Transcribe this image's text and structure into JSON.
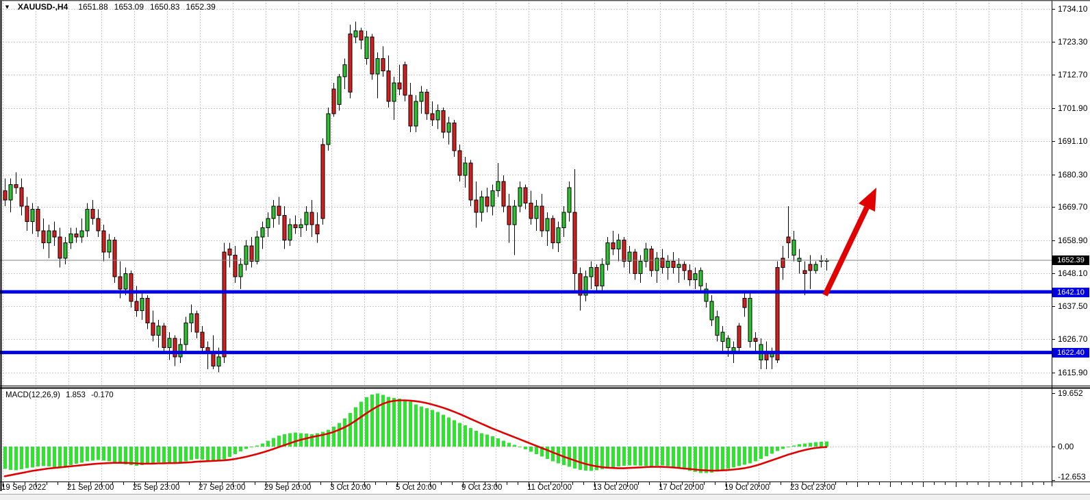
{
  "header": {
    "dropdown_icon": "▼",
    "symbol": "XAUUSD-,H4",
    "open": "1651.88",
    "high": "1653.09",
    "low": "1650.83",
    "close": "1652.39"
  },
  "price_axis": {
    "current_price_badge": "1652.39",
    "support_badge_1": "1642.10",
    "support_badge_2": "1622.40"
  },
  "indicator": {
    "label": "MACD(12,26,9)",
    "macd_value": "1.853",
    "signal_value": "-0.170"
  },
  "colors": {
    "bull": "#2EC12E",
    "bear": "#D51F1F",
    "histogram": "#2FE42F",
    "signal_line": "#E00000",
    "support_line": "#0000E1",
    "arrow": "#E00000",
    "current_price_line": "#808080",
    "grid": "#c9c9c9",
    "badge_current_bg": "#000000",
    "badge_level_bg": "#0000E1"
  },
  "chart_data": {
    "type": "candlestick",
    "title": "XAUUSD-,H4",
    "symbol": "XAUUSD",
    "timeframe": "H4",
    "ohlc_current": {
      "open": 1651.88,
      "high": 1653.09,
      "low": 1650.83,
      "close": 1652.39
    },
    "current_price": 1652.39,
    "horizontal_lines": [
      1642.1,
      1622.4
    ],
    "arrow_annotation": {
      "direction": "up",
      "from_price": 1642.0,
      "to_price": 1676.0
    },
    "ylim": {
      "top": 1734.1,
      "bottom": 1615.9
    },
    "price_tick_labels": [
      "1734.10",
      "1723.30",
      "1712.70",
      "1701.90",
      "1691.10",
      "1680.30",
      "1669.70",
      "1658.90",
      "1648.10",
      "1637.50",
      "1626.70",
      "1615.90"
    ],
    "macd_tick_labels": [
      "19.652",
      "0.00",
      "-12.653"
    ],
    "x_tick_labels": [
      "19 Sep 2022",
      "21 Sep 20:00",
      "25 Sep 23:00",
      "27 Sep 20:00",
      "29 Sep 20:00",
      "3 Oct 20:00",
      "5 Oct 20:00",
      "9 Oct 23:00",
      "11 Oct 20:00",
      "13 Oct 20:00",
      "17 Oct 20:00",
      "19 Oct 20:00",
      "23 Oct 23:00"
    ],
    "candles": [
      [
        1675,
        1679,
        1670,
        1672
      ],
      [
        1672,
        1679,
        1668,
        1677
      ],
      [
        1677,
        1681,
        1674,
        1676
      ],
      [
        1676,
        1679,
        1667,
        1670
      ],
      [
        1670,
        1673,
        1662,
        1665
      ],
      [
        1665,
        1671,
        1661,
        1669
      ],
      [
        1669,
        1670,
        1660,
        1662
      ],
      [
        1662,
        1666,
        1656,
        1658
      ],
      [
        1658,
        1664,
        1653,
        1662
      ],
      [
        1662,
        1665,
        1657,
        1660
      ],
      [
        1660,
        1663,
        1650,
        1653
      ],
      [
        1653,
        1660,
        1651,
        1658
      ],
      [
        1658,
        1663,
        1656,
        1661
      ],
      [
        1661,
        1663,
        1658,
        1660
      ],
      [
        1660,
        1666,
        1658,
        1662
      ],
      [
        1662,
        1671,
        1660,
        1669
      ],
      [
        1669,
        1672,
        1664,
        1666
      ],
      [
        1666,
        1669,
        1660,
        1662
      ],
      [
        1662,
        1664,
        1652,
        1655
      ],
      [
        1655,
        1661,
        1653,
        1659
      ],
      [
        1659,
        1660,
        1645,
        1647
      ],
      [
        1647,
        1652,
        1640,
        1643
      ],
      [
        1643,
        1650,
        1641,
        1648
      ],
      [
        1648,
        1649,
        1637,
        1639
      ],
      [
        1639,
        1644,
        1634,
        1636
      ],
      [
        1636,
        1642,
        1633,
        1640
      ],
      [
        1640,
        1641,
        1630,
        1632
      ],
      [
        1632,
        1636,
        1626,
        1628
      ],
      [
        1628,
        1633,
        1624,
        1631
      ],
      [
        1631,
        1632,
        1622,
        1624
      ],
      [
        1624,
        1629,
        1620,
        1627
      ],
      [
        1627,
        1628,
        1618,
        1621
      ],
      [
        1621,
        1627,
        1619,
        1625
      ],
      [
        1625,
        1634,
        1623,
        1632
      ],
      [
        1632,
        1638,
        1629,
        1635
      ],
      [
        1635,
        1636,
        1627,
        1629
      ],
      [
        1629,
        1631,
        1622,
        1624
      ],
      [
        1624,
        1626,
        1617,
        1622
      ],
      [
        1622,
        1628,
        1617,
        1618
      ],
      [
        1618,
        1624,
        1616,
        1621
      ],
      [
        1655,
        1658,
        1619,
        1621
      ],
      [
        1656,
        1658,
        1650,
        1654
      ],
      [
        1654,
        1657,
        1645,
        1647
      ],
      [
        1647,
        1653,
        1643,
        1651
      ],
      [
        1651,
        1659,
        1649,
        1657
      ],
      [
        1657,
        1660,
        1650,
        1652
      ],
      [
        1652,
        1662,
        1651,
        1660
      ],
      [
        1660,
        1665,
        1656,
        1663
      ],
      [
        1663,
        1668,
        1660,
        1666
      ],
      [
        1666,
        1672,
        1663,
        1670
      ],
      [
        1670,
        1673,
        1664,
        1667
      ],
      [
        1667,
        1670,
        1656,
        1659
      ],
      [
        1659,
        1666,
        1657,
        1664
      ],
      [
        1664,
        1667,
        1661,
        1663
      ],
      [
        1663,
        1666,
        1660,
        1664
      ],
      [
        1664,
        1670,
        1662,
        1668
      ],
      [
        1668,
        1672,
        1660,
        1664
      ],
      [
        1664,
        1668,
        1658,
        1661
      ],
      [
        1690,
        1692,
        1664,
        1666
      ],
      [
        1690,
        1702,
        1688,
        1700
      ],
      [
        1708,
        1710,
        1699,
        1700
      ],
      [
        1703,
        1713,
        1701,
        1712
      ],
      [
        1712,
        1718,
        1708,
        1716
      ],
      [
        1726,
        1729,
        1705,
        1707
      ],
      [
        1725,
        1730,
        1723,
        1727
      ],
      [
        1727,
        1728,
        1721,
        1724
      ],
      [
        1718,
        1727,
        1716,
        1725
      ],
      [
        1725,
        1726,
        1711,
        1713
      ],
      [
        1713,
        1720,
        1705,
        1718
      ],
      [
        1718,
        1722,
        1712,
        1714
      ],
      [
        1714,
        1719,
        1702,
        1704
      ],
      [
        1704,
        1712,
        1698,
        1710
      ],
      [
        1710,
        1716,
        1706,
        1708
      ],
      [
        1716,
        1717,
        1704,
        1706
      ],
      [
        1706,
        1710,
        1694,
        1696
      ],
      [
        1696,
        1706,
        1694,
        1704
      ],
      [
        1704,
        1709,
        1700,
        1707
      ],
      [
        1707,
        1708,
        1698,
        1700
      ],
      [
        1700,
        1704,
        1696,
        1698
      ],
      [
        1698,
        1703,
        1695,
        1701
      ],
      [
        1701,
        1702,
        1692,
        1694
      ],
      [
        1694,
        1699,
        1690,
        1697
      ],
      [
        1697,
        1698,
        1686,
        1688
      ],
      [
        1688,
        1690,
        1678,
        1680
      ],
      [
        1680,
        1686,
        1676,
        1684
      ],
      [
        1684,
        1685,
        1670,
        1672
      ],
      [
        1672,
        1678,
        1663,
        1668
      ],
      [
        1668,
        1675,
        1665,
        1673
      ],
      [
        1673,
        1676,
        1668,
        1670
      ],
      [
        1670,
        1677,
        1667,
        1675
      ],
      [
        1675,
        1684,
        1673,
        1678
      ],
      [
        1678,
        1680,
        1668,
        1670
      ],
      [
        1670,
        1674,
        1658,
        1664
      ],
      [
        1664,
        1672,
        1654,
        1670
      ],
      [
        1670,
        1678,
        1668,
        1676
      ],
      [
        1676,
        1677,
        1669,
        1671
      ],
      [
        1671,
        1675,
        1664,
        1666
      ],
      [
        1666,
        1672,
        1662,
        1670
      ],
      [
        1670,
        1674,
        1660,
        1662
      ],
      [
        1662,
        1668,
        1657,
        1666
      ],
      [
        1666,
        1667,
        1656,
        1658
      ],
      [
        1658,
        1665,
        1655,
        1663
      ],
      [
        1663,
        1670,
        1660,
        1668
      ],
      [
        1668,
        1678,
        1665,
        1676
      ],
      [
        1668,
        1682,
        1642,
        1648
      ],
      [
        1648,
        1650,
        1636,
        1641
      ],
      [
        1641,
        1649,
        1639,
        1647
      ],
      [
        1647,
        1652,
        1643,
        1650
      ],
      [
        1650,
        1651,
        1642,
        1644
      ],
      [
        1644,
        1653,
        1642,
        1651
      ],
      [
        1651,
        1660,
        1649,
        1658
      ],
      [
        1658,
        1662,
        1654,
        1656
      ],
      [
        1656,
        1661,
        1652,
        1659
      ],
      [
        1659,
        1660,
        1650,
        1652
      ],
      [
        1652,
        1657,
        1648,
        1655
      ],
      [
        1655,
        1656,
        1646,
        1648
      ],
      [
        1648,
        1654,
        1645,
        1652
      ],
      [
        1652,
        1658,
        1650,
        1656
      ],
      [
        1656,
        1657,
        1647,
        1649
      ],
      [
        1649,
        1655,
        1645,
        1653
      ],
      [
        1653,
        1656,
        1648,
        1650
      ],
      [
        1650,
        1654,
        1646,
        1652
      ],
      [
        1652,
        1655,
        1648,
        1650
      ],
      [
        1650,
        1653,
        1645,
        1651
      ],
      [
        1651,
        1652,
        1646,
        1649
      ],
      [
        1649,
        1651,
        1644,
        1646
      ],
      [
        1646,
        1650,
        1643,
        1648
      ],
      [
        1644,
        1650,
        1642,
        1649
      ],
      [
        1639,
        1645,
        1637,
        1643
      ],
      [
        1633,
        1641,
        1631,
        1639
      ],
      [
        1628,
        1636,
        1626,
        1634
      ],
      [
        1626,
        1631,
        1623,
        1629
      ],
      [
        1624,
        1628,
        1621,
        1627
      ],
      [
        1622,
        1626,
        1619,
        1624
      ],
      [
        1631,
        1632,
        1622,
        1624
      ],
      [
        1640,
        1642,
        1634,
        1637
      ],
      [
        1626,
        1642,
        1624,
        1640
      ],
      [
        1627,
        1629,
        1622,
        1626
      ],
      [
        1620,
        1627,
        1617,
        1625
      ],
      [
        1622,
        1626,
        1617,
        1620
      ],
      [
        1621,
        1624,
        1617,
        1622
      ],
      [
        1650,
        1652,
        1619,
        1620
      ],
      [
        1653,
        1657,
        1646,
        1650
      ],
      [
        1660,
        1670,
        1653,
        1658
      ],
      [
        1654,
        1662,
        1652,
        1659
      ],
      [
        1652,
        1656,
        1648,
        1653
      ],
      [
        1649,
        1652,
        1641,
        1648
      ],
      [
        1651,
        1654,
        1643,
        1649
      ],
      [
        1649,
        1652,
        1648,
        1651
      ],
      [
        1652,
        1654,
        1650,
        1652.4
      ],
      [
        1652,
        1653,
        1649,
        1652.4
      ]
    ],
    "macd": {
      "params": "12,26,9",
      "current": {
        "macd": 1.853,
        "signal": -0.17
      },
      "range": {
        "max": 19.652,
        "min": -12.653
      },
      "histogram": [
        -8.3,
        -8.6,
        -8.8,
        -8.4,
        -8.0,
        -7.7,
        -7.4,
        -7.2,
        -7.4,
        -7.6,
        -7.8,
        -7.4,
        -6.9,
        -6.4,
        -5.9,
        -5.5,
        -5.2,
        -5.0,
        -5.2,
        -5.5,
        -5.9,
        -6.3,
        -6.6,
        -6.9,
        -7.1,
        -6.9,
        -6.6,
        -6.2,
        -5.8,
        -6.0,
        -6.2,
        -6.4,
        -6.0,
        -5.5,
        -5.0,
        -4.6,
        -4.8,
        -5.1,
        -5.4,
        -5.1,
        -4.7,
        -3.8,
        -2.8,
        -1.8,
        -0.9,
        -0.3,
        0.4,
        1.2,
        2.2,
        3.2,
        4.0,
        4.6,
        5.0,
        5.2,
        5.0,
        4.8,
        4.6,
        4.9,
        5.4,
        6.2,
        7.4,
        8.8,
        10.4,
        12.4,
        14.6,
        16.6,
        18.2,
        19.3,
        19.65,
        19.2,
        18.4,
        18.0,
        17.8,
        17.4,
        16.6,
        15.6,
        14.8,
        14.2,
        13.6,
        12.8,
        11.8,
        10.8,
        9.8,
        8.8,
        7.8,
        6.8,
        5.8,
        5.0,
        4.4,
        3.8,
        3.0,
        2.2,
        1.4,
        0.6,
        -0.2,
        -1.0,
        -1.9,
        -2.8,
        -3.7,
        -4.6,
        -5.4,
        -6.2,
        -6.9,
        -7.5,
        -8.1,
        -8.6,
        -8.9,
        -9.0,
        -8.8,
        -8.4,
        -8.0,
        -7.6,
        -7.3,
        -7.1,
        -7.0,
        -7.0,
        -7.1,
        -7.2,
        -7.2,
        -7.1,
        -7.0,
        -7.2,
        -7.6,
        -8.0,
        -8.5,
        -9.0,
        -9.4,
        -9.7,
        -9.8,
        -9.6,
        -9.2,
        -8.7,
        -8.2,
        -7.7,
        -7.2,
        -6.7,
        -6.2,
        -5.5,
        -4.6,
        -3.6,
        -2.6,
        -1.7,
        -0.9,
        -0.2,
        0.4,
        0.9,
        1.2,
        1.45,
        1.6,
        1.75,
        1.853
      ],
      "signal": [
        -11.0,
        -10.6,
        -10.2,
        -9.8,
        -9.4,
        -9.0,
        -8.7,
        -8.4,
        -8.1,
        -7.9,
        -7.7,
        -7.5,
        -7.3,
        -7.1,
        -6.9,
        -6.7,
        -6.5,
        -6.3,
        -6.2,
        -6.1,
        -6.0,
        -6.0,
        -6.0,
        -6.1,
        -6.2,
        -6.3,
        -6.3,
        -6.3,
        -6.2,
        -6.2,
        -6.1,
        -6.1,
        -6.0,
        -5.9,
        -5.8,
        -5.6,
        -5.5,
        -5.4,
        -5.3,
        -5.2,
        -5.1,
        -4.9,
        -4.6,
        -4.2,
        -3.8,
        -3.3,
        -2.8,
        -2.2,
        -1.6,
        -0.9,
        -0.2,
        0.5,
        1.2,
        1.9,
        2.5,
        3.0,
        3.5,
        3.9,
        4.3,
        4.8,
        5.4,
        6.2,
        7.1,
        8.2,
        9.5,
        10.9,
        12.3,
        13.6,
        14.8,
        15.8,
        16.5,
        16.9,
        17.1,
        17.1,
        17.0,
        16.8,
        16.5,
        16.1,
        15.6,
        15.0,
        14.4,
        13.7,
        12.9,
        12.1,
        11.2,
        10.3,
        9.4,
        8.5,
        7.6,
        6.7,
        5.9,
        5.1,
        4.3,
        3.5,
        2.7,
        1.9,
        1.1,
        0.3,
        -0.5,
        -1.3,
        -2.1,
        -2.9,
        -3.7,
        -4.4,
        -5.1,
        -5.8,
        -6.4,
        -6.9,
        -7.3,
        -7.6,
        -7.8,
        -7.9,
        -8.0,
        -8.0,
        -7.9,
        -7.8,
        -7.7,
        -7.6,
        -7.5,
        -7.5,
        -7.5,
        -7.6,
        -7.7,
        -7.9,
        -8.1,
        -8.3,
        -8.5,
        -8.7,
        -8.8,
        -8.9,
        -8.9,
        -8.8,
        -8.7,
        -8.5,
        -8.3,
        -8.0,
        -7.6,
        -7.1,
        -6.5,
        -5.8,
        -5.1,
        -4.4,
        -3.7,
        -3.0,
        -2.4,
        -1.8,
        -1.3,
        -0.85,
        -0.5,
        -0.3,
        -0.17
      ]
    }
  }
}
